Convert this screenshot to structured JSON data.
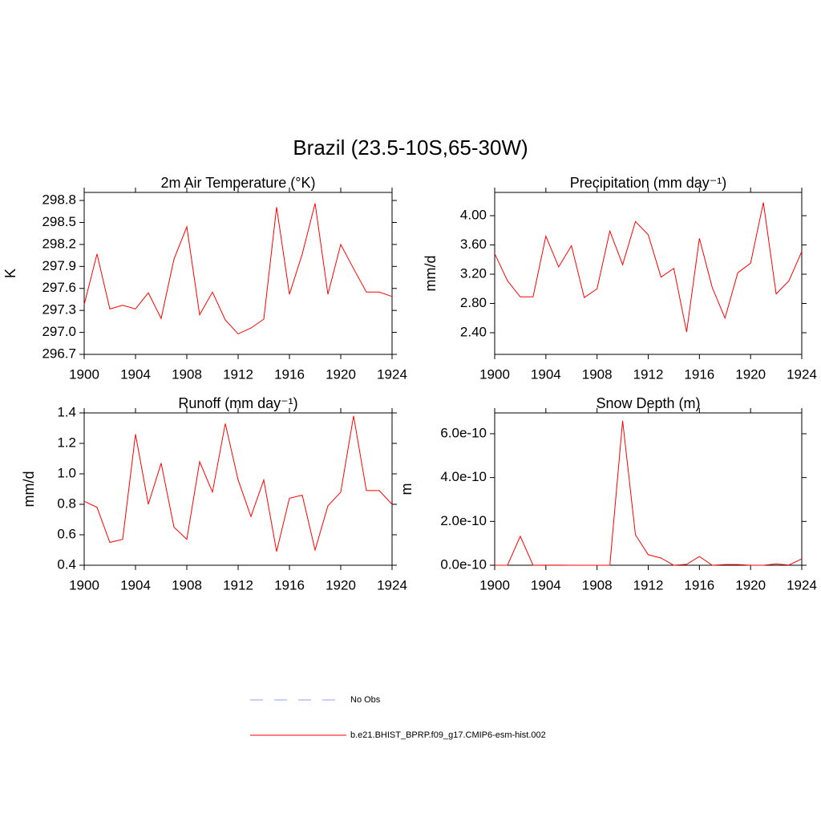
{
  "title": "Brazil (23.5-10S,65-30W)",
  "legend": [
    {
      "name": "No Obs",
      "color": "#9a9aff",
      "dash": true
    },
    {
      "name": "b.e21.BHIST_BPRP.f09_g17.CMIP6-esm-hist.002",
      "color": "#ff0000",
      "dash": false
    }
  ],
  "chart_data": [
    {
      "type": "line",
      "title": "2m Air Temperature (°K)",
      "y_label": "K",
      "color": "#ff0000",
      "x": [
        1900,
        1901,
        1902,
        1903,
        1904,
        1905,
        1906,
        1907,
        1908,
        1909,
        1910,
        1911,
        1912,
        1913,
        1914,
        1915,
        1916,
        1917,
        1918,
        1919,
        1920,
        1921,
        1922,
        1923,
        1924
      ],
      "values": [
        297.38,
        298.07,
        297.32,
        297.37,
        297.32,
        297.54,
        297.19,
        298.0,
        298.44,
        297.24,
        297.55,
        297.17,
        296.98,
        297.06,
        297.18,
        298.71,
        297.52,
        298.07,
        298.76,
        297.52,
        298.2,
        297.87,
        297.55,
        297.55,
        297.49
      ],
      "xlim": [
        1900,
        1924
      ],
      "xticks": [
        1900,
        1904,
        1908,
        1912,
        1916,
        1920,
        1924
      ],
      "ylim": [
        296.7,
        298.91
      ],
      "yticks": [
        296.7,
        {
          "value": 297,
          "label": "297.0"
        },
        297.3,
        297.6,
        297.9,
        298.2,
        298.5,
        298.8
      ]
    },
    {
      "type": "line",
      "title": "Precipitation (mm day⁻¹)",
      "y_label": "mm/d",
      "color": "#ff0000",
      "x": [
        1900,
        1901,
        1902,
        1903,
        1904,
        1905,
        1906,
        1907,
        1908,
        1909,
        1910,
        1911,
        1912,
        1913,
        1914,
        1915,
        1916,
        1917,
        1918,
        1919,
        1920,
        1921,
        1922,
        1923,
        1924
      ],
      "values": [
        3.48,
        3.11,
        2.89,
        2.89,
        3.72,
        3.3,
        3.59,
        2.88,
        3.0,
        3.79,
        3.33,
        3.92,
        3.74,
        3.16,
        3.28,
        2.41,
        3.69,
        3.02,
        2.6,
        3.22,
        3.35,
        4.18,
        2.93,
        3.11,
        3.51
      ],
      "xlim": [
        1900,
        1924
      ],
      "xticks": [
        1900,
        1904,
        1908,
        1912,
        1916,
        1920,
        1924
      ],
      "ylim": [
        2.104,
        4.318
      ],
      "yticks": [
        {
          "value": 2.4,
          "label": "2.40"
        },
        {
          "value": 2.8,
          "label": "2.80"
        },
        {
          "value": 3.2,
          "label": "3.20"
        },
        {
          "value": 3.6,
          "label": "3.60"
        },
        {
          "value": 4,
          "label": "4.00"
        }
      ]
    },
    {
      "type": "line",
      "title": "Runoff (mm day⁻¹)",
      "y_label": "mm/d",
      "color": "#ff0000",
      "x": [
        1900,
        1901,
        1902,
        1903,
        1904,
        1905,
        1906,
        1907,
        1908,
        1909,
        1910,
        1911,
        1912,
        1913,
        1914,
        1915,
        1916,
        1917,
        1918,
        1919,
        1920,
        1921,
        1922,
        1923,
        1924
      ],
      "values": [
        0.82,
        0.78,
        0.55,
        0.57,
        1.26,
        0.8,
        1.07,
        0.65,
        0.57,
        1.08,
        0.88,
        1.33,
        0.96,
        0.72,
        0.96,
        0.49,
        0.84,
        0.86,
        0.5,
        0.79,
        0.88,
        1.38,
        0.89,
        0.89,
        0.8
      ],
      "xlim": [
        1900,
        1924
      ],
      "xticks": [
        1900,
        1904,
        1908,
        1912,
        1916,
        1920,
        1924
      ],
      "ylim": [
        0.4,
        1.4
      ],
      "yticks": [
        0.4,
        0.6,
        0.8,
        {
          "value": 1,
          "label": "1.0"
        },
        1.2,
        1.4
      ]
    },
    {
      "type": "line",
      "title": "Snow Depth (m)",
      "y_label": "m",
      "color": "#ff0000",
      "x": [
        1900,
        1901,
        1902,
        1903,
        1904,
        1905,
        1906,
        1907,
        1908,
        1909,
        1910,
        1911,
        1912,
        1913,
        1914,
        1915,
        1916,
        1917,
        1918,
        1919,
        1920,
        1921,
        1922,
        1923,
        1924
      ],
      "values": [
        0,
        0,
        1.32e-10,
        0,
        5e-13,
        5e-13,
        0,
        0,
        0,
        0,
        6.59e-10,
        1.39e-10,
        4.8e-11,
        3.3e-11,
        0,
        4e-12,
        4e-11,
        0,
        3e-12,
        3e-12,
        0,
        0,
        6e-12,
        1e-12,
        2.9e-11
      ],
      "xlim": [
        1900,
        1924
      ],
      "xticks": [
        1900,
        1904,
        1908,
        1912,
        1916,
        1920,
        1924
      ],
      "ylim": [
        0,
        6.95e-10
      ],
      "yticks": [
        {
          "value": 0,
          "label": "0.0e-10"
        },
        {
          "value": 2e-10,
          "label": "2.0e-10"
        },
        {
          "value": 4e-10,
          "label": "4.0e-10"
        },
        {
          "value": 6e-10,
          "label": "6.0e-10"
        }
      ]
    }
  ]
}
